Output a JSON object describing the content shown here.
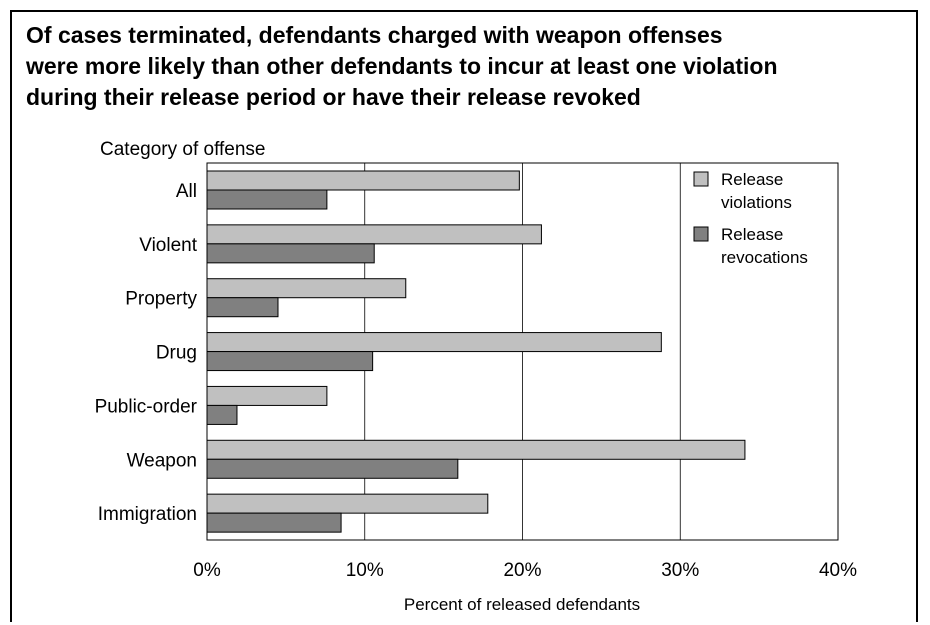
{
  "chart_data": {
    "type": "bar",
    "orientation": "horizontal",
    "title_lines": [
      "Of cases terminated, defendants charged with weapon offenses",
      "were more likely than other defendants to incur at least one violation",
      "during their release period or have their release revoked"
    ],
    "ylabel": "Category of offense",
    "xlabel": "Percent of released defendants",
    "categories": [
      "All",
      "Violent",
      "Property",
      "Drug",
      "Public-order",
      "Weapon",
      "Immigration"
    ],
    "series": [
      {
        "name": "Release violations",
        "legend_lines": [
          "Release",
          "violations"
        ],
        "color": "#c0c0c0",
        "values": [
          19.8,
          21.2,
          12.6,
          28.8,
          7.6,
          34.1,
          17.8
        ]
      },
      {
        "name": "Release revocations",
        "legend_lines": [
          "Release",
          "revocations"
        ],
        "color": "#808080",
        "values": [
          7.6,
          10.6,
          4.5,
          10.5,
          1.9,
          15.9,
          8.5
        ]
      }
    ],
    "xlim": [
      0,
      40
    ],
    "xticks": [
      0,
      10,
      20,
      30,
      40
    ],
    "xtick_labels": [
      "0%",
      "10%",
      "20%",
      "30%",
      "40%"
    ],
    "grid": "vertical",
    "legend_position": "top-right"
  }
}
